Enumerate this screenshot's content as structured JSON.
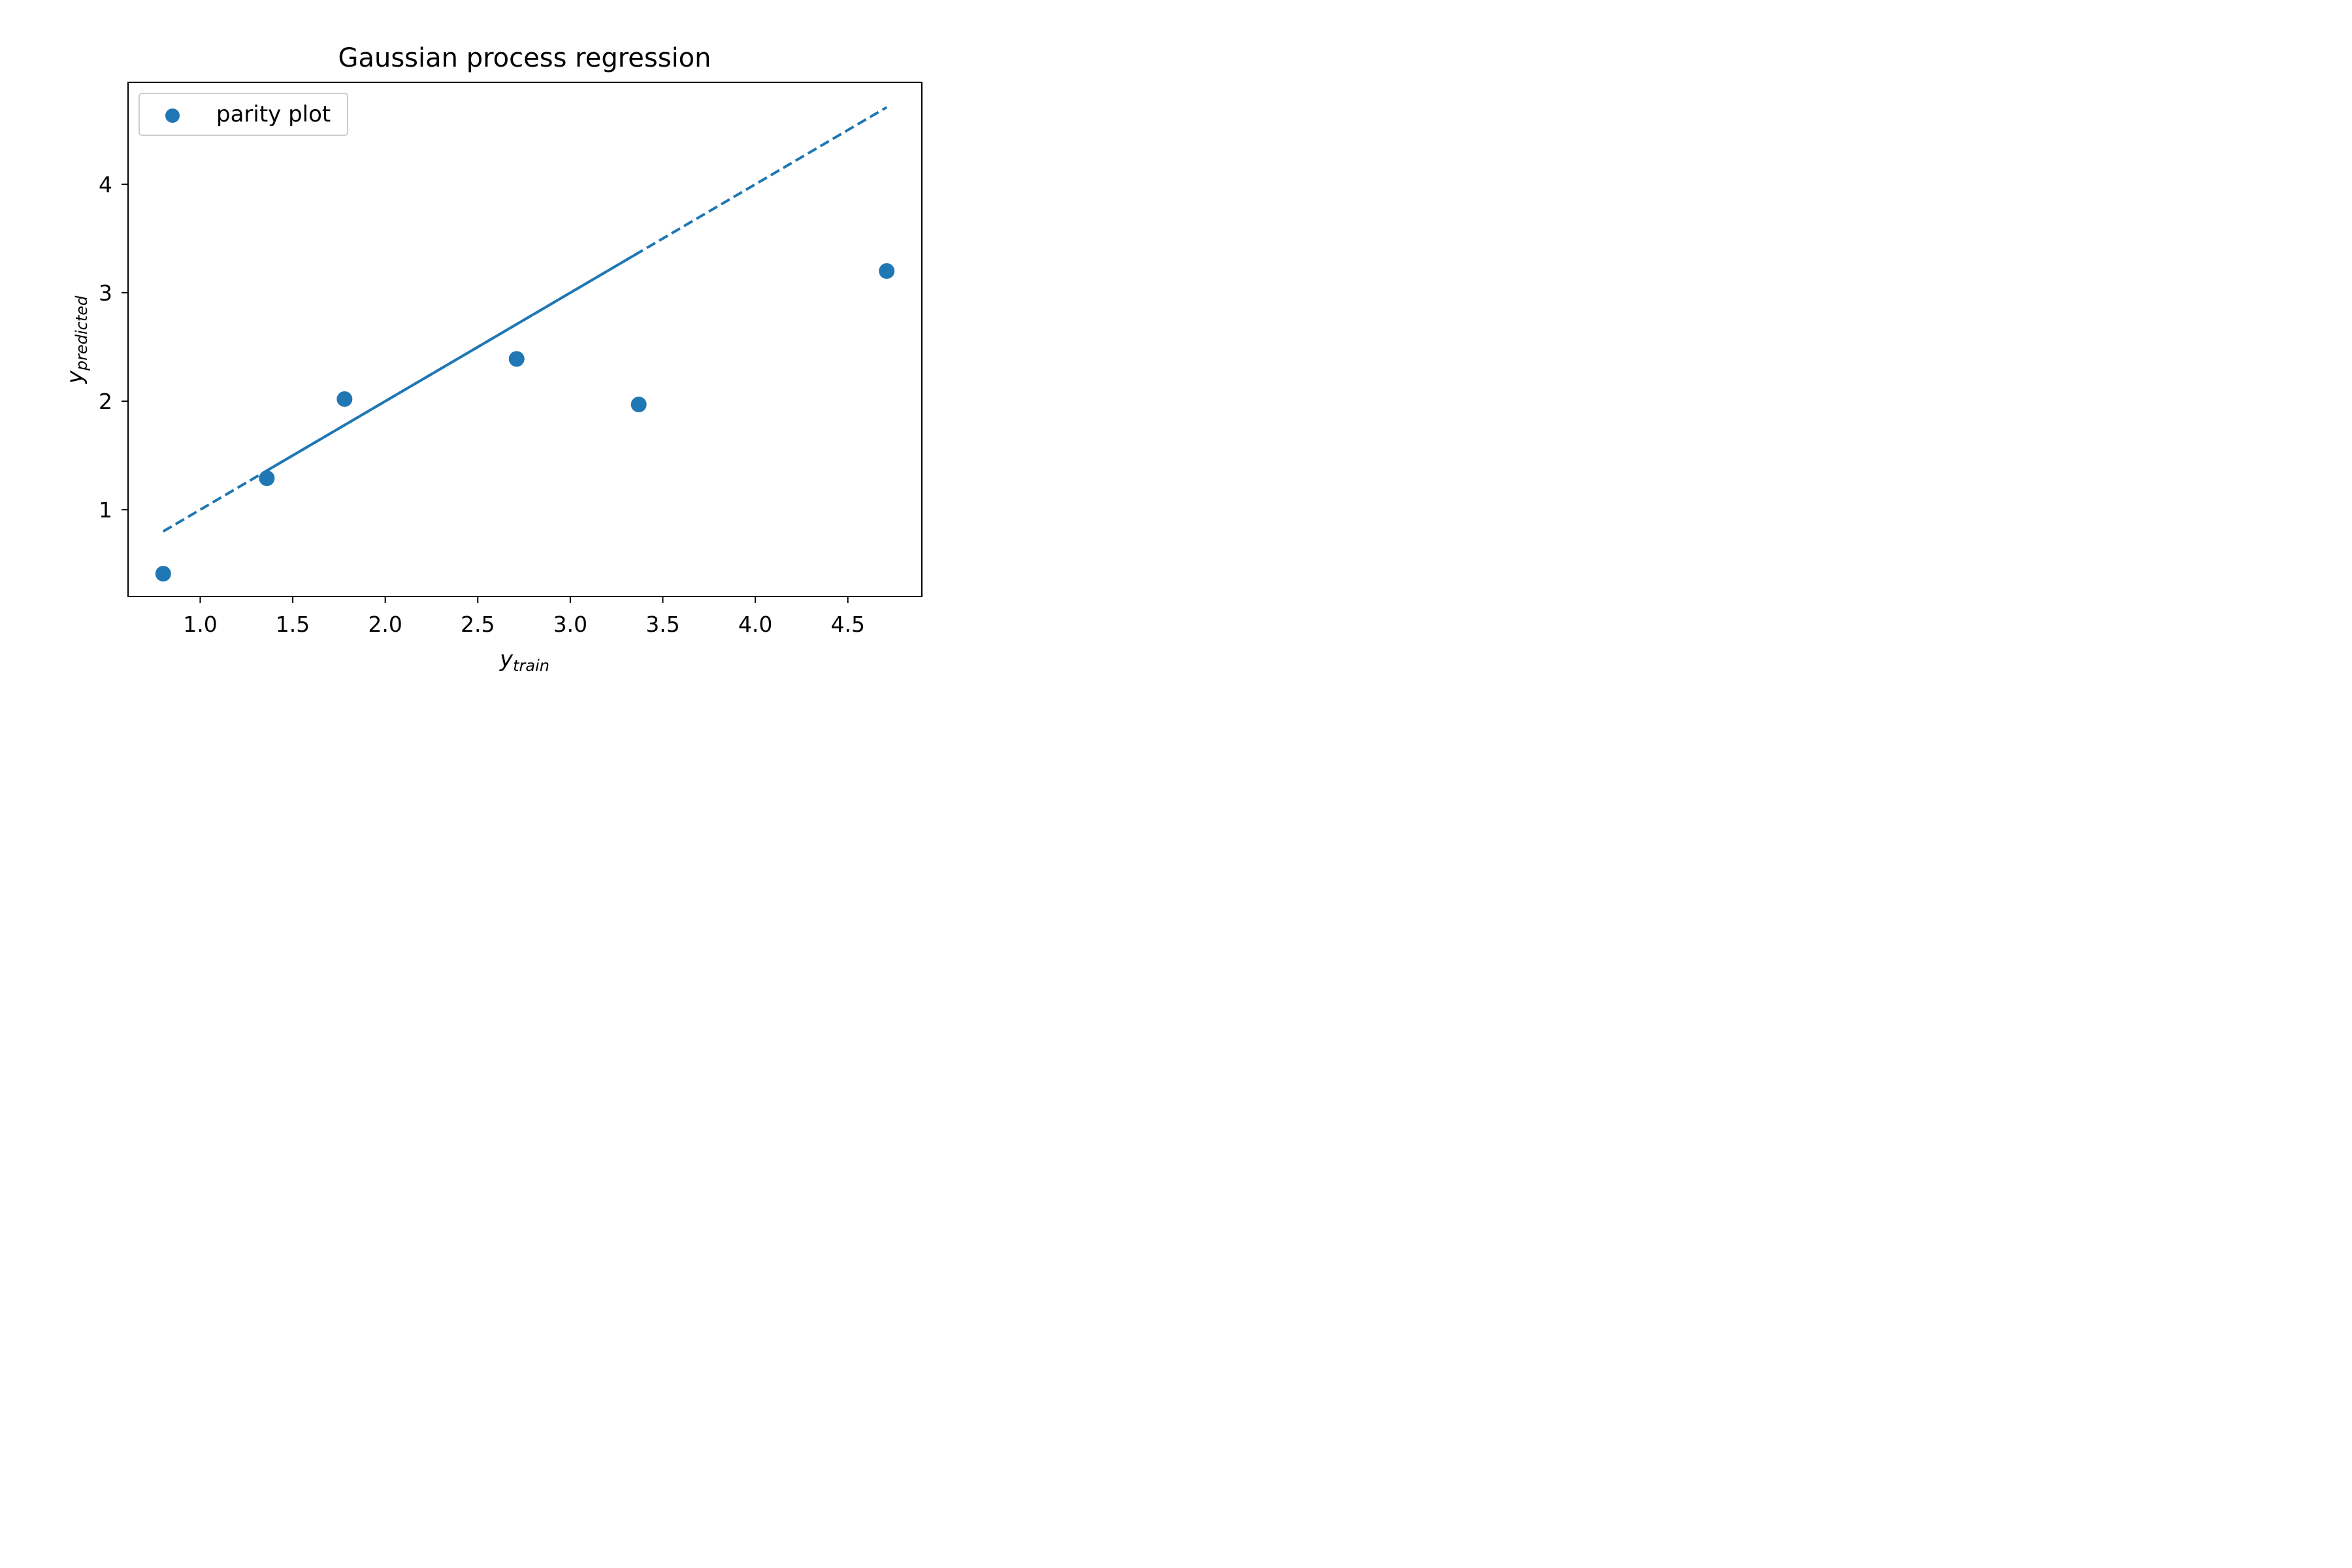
{
  "chart_data": {
    "type": "scatter",
    "title": "Gaussian process regression",
    "xlabel": {
      "base": "y",
      "sub": "train"
    },
    "ylabel": {
      "base": "y",
      "sub": "predicted"
    },
    "xlim": [
      0.61,
      4.9
    ],
    "ylim": [
      0.2,
      4.94
    ],
    "xticks": [
      1.0,
      1.5,
      2.0,
      2.5,
      3.0,
      3.5,
      4.0,
      4.5
    ],
    "xtick_labels": [
      "1.0",
      "1.5",
      "2.0",
      "2.5",
      "3.0",
      "3.5",
      "4.0",
      "4.5"
    ],
    "yticks": [
      1,
      2,
      3,
      4
    ],
    "ytick_labels": [
      "1",
      "2",
      "3",
      "4"
    ],
    "grid": false,
    "legend": {
      "placement": "upper-left",
      "entries": [
        "parity plot"
      ]
    },
    "color": "#1f77b4",
    "series": [
      {
        "name": "parity plot",
        "kind": "scatter",
        "x": [
          0.8,
          1.36,
          1.78,
          2.71,
          3.37,
          4.71
        ],
        "y": [
          0.41,
          1.29,
          2.02,
          2.39,
          1.97,
          3.2
        ]
      },
      {
        "kind": "line",
        "style": "dashed",
        "x": [
          0.8,
          4.71
        ],
        "y": [
          0.8,
          4.71
        ]
      },
      {
        "kind": "line",
        "style": "solid",
        "x": [
          1.36,
          3.37
        ],
        "y": [
          1.36,
          3.37
        ]
      }
    ]
  }
}
